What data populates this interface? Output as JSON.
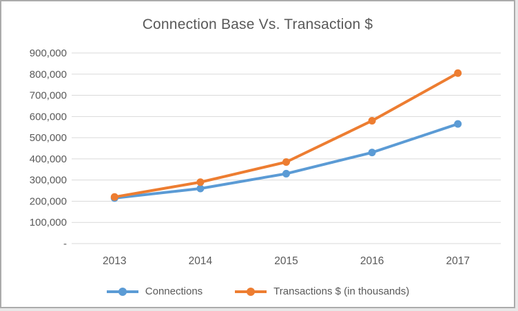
{
  "chart_data": {
    "type": "line",
    "title": "Connection Base Vs. Transaction $",
    "categories": [
      "2013",
      "2014",
      "2015",
      "2016",
      "2017"
    ],
    "series": [
      {
        "name": "Connections",
        "color": "#5B9BD5",
        "values": [
          215000,
          260000,
          330000,
          430000,
          565000
        ]
      },
      {
        "name": "Transactions $ (in thousands)",
        "color": "#ED7D31",
        "values": [
          220000,
          290000,
          385000,
          580000,
          805000
        ]
      }
    ],
    "xlabel": "",
    "ylabel": "",
    "ylim": [
      0,
      900000
    ],
    "y_tick_step": 100000,
    "y_tick_labels_bottom_to_top": [
      "-",
      "100,000",
      "200,000",
      "300,000",
      "400,000",
      "500,000",
      "600,000",
      "700,000",
      "800,000",
      "900,000"
    ],
    "grid": true,
    "legend_position": "bottom"
  },
  "colors": {
    "gridline": "#D9D9D9",
    "axis_text": "#595959",
    "title_text": "#595959",
    "background": "#FFFFFF",
    "frame_border": "#ABABAB"
  }
}
